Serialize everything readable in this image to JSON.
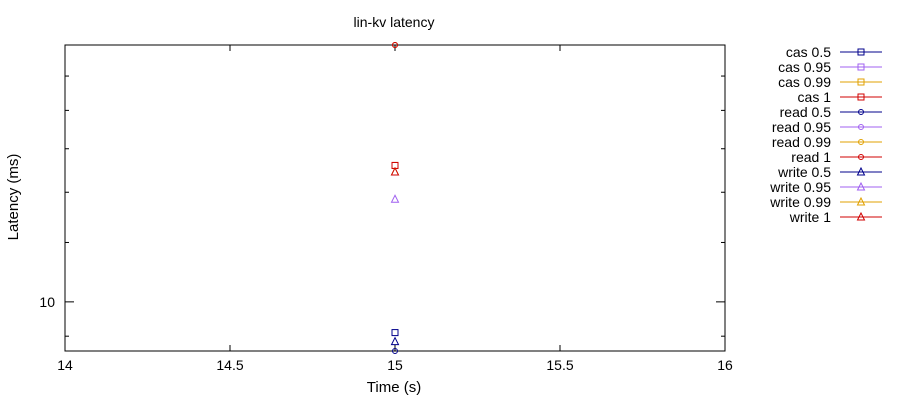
{
  "chart_data": {
    "type": "scatter",
    "title": "lin-kv latency",
    "xlabel": "Time (s)",
    "ylabel": "Latency (ms)",
    "xlim": [
      14,
      16
    ],
    "ylim": [
      8.6,
      22
    ],
    "yscale": "log",
    "grid": false,
    "legend_position": "right",
    "x_ticks": [
      {
        "value": 14,
        "label": "14"
      },
      {
        "value": 14.5,
        "label": "14.5"
      },
      {
        "value": 15,
        "label": "15"
      },
      {
        "value": 15.5,
        "label": "15.5"
      },
      {
        "value": 16,
        "label": "16"
      }
    ],
    "y_ticks": [
      {
        "value": 10,
        "label": "10"
      }
    ],
    "series": [
      {
        "name": "cas 0.5",
        "color": "#00008b",
        "marker": "square",
        "points": [
          [
            15,
            9.1
          ]
        ]
      },
      {
        "name": "cas 0.95",
        "color": "#a060f0",
        "marker": "square",
        "points": [
          [
            15,
            15.2
          ]
        ]
      },
      {
        "name": "cas 0.99",
        "color": "#e0a000",
        "marker": "square",
        "points": [
          [
            15,
            15.2
          ]
        ]
      },
      {
        "name": "cas 1",
        "color": "#d00000",
        "marker": "square",
        "points": [
          [
            15,
            15.2
          ]
        ]
      },
      {
        "name": "read 0.5",
        "color": "#00008b",
        "marker": "circle",
        "points": [
          [
            15,
            8.6
          ]
        ]
      },
      {
        "name": "read 0.95",
        "color": "#a060f0",
        "marker": "circle",
        "points": [
          [
            15,
            22.0
          ]
        ]
      },
      {
        "name": "read 0.99",
        "color": "#e0a000",
        "marker": "circle",
        "points": [
          [
            15,
            22.0
          ]
        ]
      },
      {
        "name": "read 1",
        "color": "#d00000",
        "marker": "circle",
        "points": [
          [
            15,
            22.0
          ]
        ]
      },
      {
        "name": "write 0.5",
        "color": "#00008b",
        "marker": "triangle",
        "points": [
          [
            15,
            8.85
          ]
        ]
      },
      {
        "name": "write 0.95",
        "color": "#a060f0",
        "marker": "triangle",
        "points": [
          [
            15,
            13.7
          ]
        ]
      },
      {
        "name": "write 0.99",
        "color": "#e0a000",
        "marker": "triangle",
        "points": [
          [
            15,
            14.9
          ]
        ]
      },
      {
        "name": "write 1",
        "color": "#d00000",
        "marker": "triangle",
        "points": [
          [
            15,
            14.9
          ]
        ]
      }
    ]
  }
}
